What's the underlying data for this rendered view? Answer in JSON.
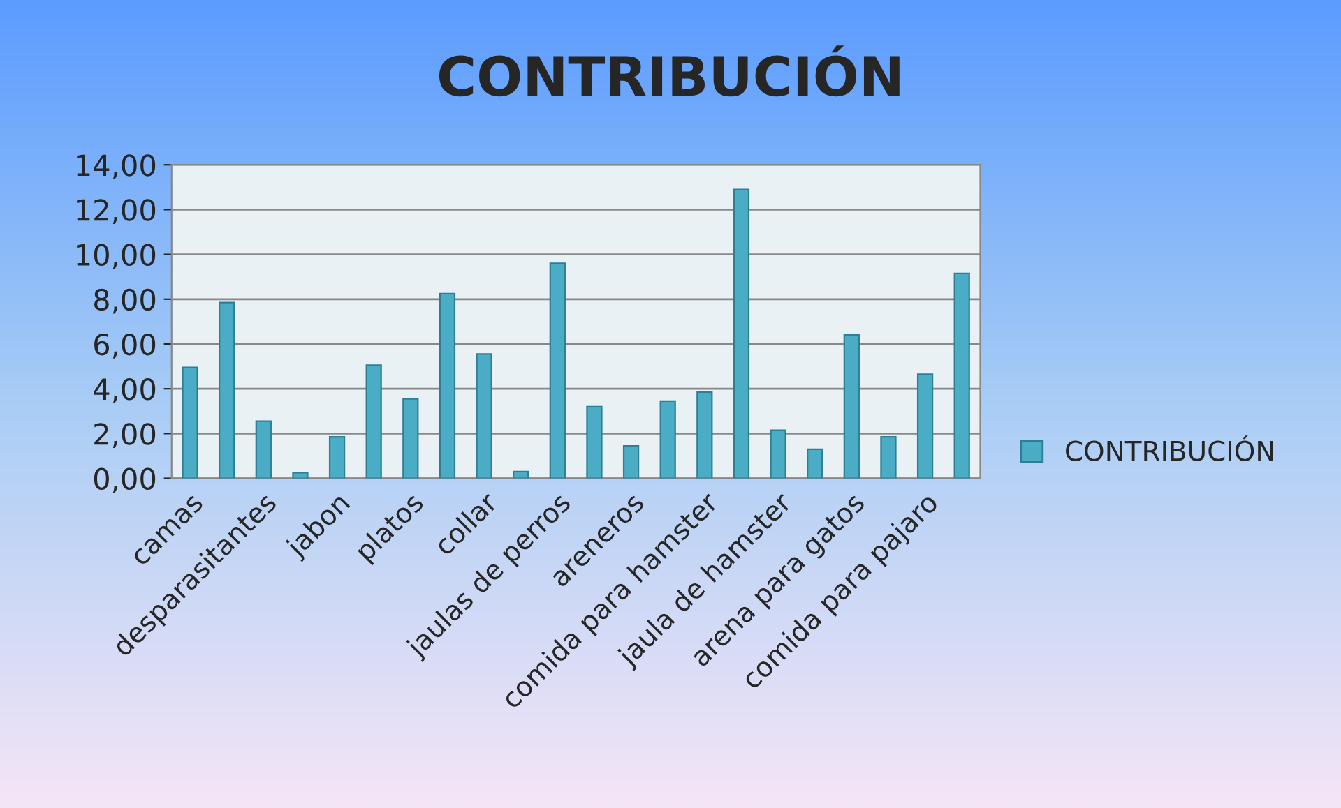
{
  "chart_data": {
    "type": "bar",
    "title": "CONTRIBUCIÓN",
    "categories": [
      "camas",
      null,
      "desparasitantes",
      null,
      "jabon",
      null,
      "platos",
      null,
      "collar",
      null,
      "jaulas de perros",
      null,
      "areneros",
      null,
      "comida para hamster",
      null,
      "jaula de hamster",
      null,
      "arena para gatos",
      null,
      "comida para pajaro",
      null
    ],
    "series": [
      {
        "name": "CONTRIBUCIÓN",
        "color": "#4bacc6",
        "values": [
          4.95,
          7.85,
          2.55,
          0.25,
          1.85,
          5.05,
          3.55,
          8.25,
          5.55,
          0.3,
          9.6,
          3.2,
          1.45,
          3.45,
          3.85,
          12.9,
          2.15,
          1.3,
          6.4,
          1.85,
          4.65,
          9.15
        ]
      }
    ],
    "ylim": [
      0,
      14
    ],
    "yticks": [
      {
        "value": 0,
        "label": "0,00"
      },
      {
        "value": 2,
        "label": "2,00"
      },
      {
        "value": 4,
        "label": "4,00"
      },
      {
        "value": 6,
        "label": "6,00"
      },
      {
        "value": 8,
        "label": "8,00"
      },
      {
        "value": 10,
        "label": "10,00"
      },
      {
        "value": 12,
        "label": "12,00"
      },
      {
        "value": 14,
        "label": "14,00"
      }
    ],
    "grid": "y",
    "legend": "right"
  }
}
